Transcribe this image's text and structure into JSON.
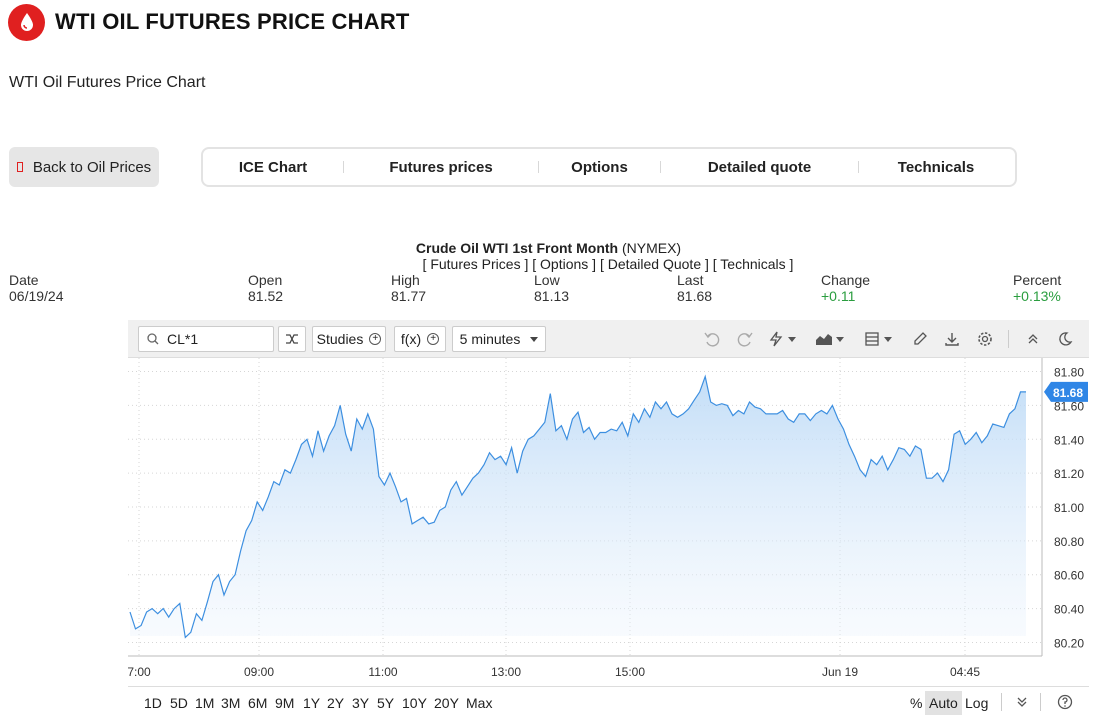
{
  "header": {
    "title": "WTI OIL FUTURES PRICE CHART",
    "logo_icon": "oil-drop-icon",
    "brand_color": "#e02020"
  },
  "subtitle": "WTI Oil Futures Price Chart",
  "back_button": {
    "label": "Back to Oil Prices"
  },
  "tabs": [
    {
      "label": "ICE Chart"
    },
    {
      "label": "Futures prices"
    },
    {
      "label": "Options"
    },
    {
      "label": "Detailed quote"
    },
    {
      "label": "Technicals"
    }
  ],
  "quote": {
    "name": "Crude Oil WTI 1st Front Month",
    "exchange": "(NYMEX)",
    "links": "[ Futures Prices ] [ Options ] [ Detailed Quote ] [ Technicals ]",
    "stats": [
      {
        "label": "Date",
        "value": "06/19/24",
        "positive": false
      },
      {
        "label": "Open",
        "value": "81.52",
        "positive": false
      },
      {
        "label": "High",
        "value": "81.77",
        "positive": false
      },
      {
        "label": "Low",
        "value": "81.13",
        "positive": false
      },
      {
        "label": "Last",
        "value": "81.68",
        "positive": false
      },
      {
        "label": "Change",
        "value": "+0.11",
        "positive": true
      },
      {
        "label": "Percent",
        "value": "+0.13%",
        "positive": true
      }
    ]
  },
  "toolbar": {
    "symbol": "CL*1",
    "studies_label": "Studies",
    "fx_label": "f(x)",
    "interval_label": "5 minutes",
    "icons": [
      "search-icon",
      "shuffle-icon",
      "undo-icon",
      "redo-icon",
      "lightning-icon",
      "area-chart-icon",
      "layout-icon",
      "pencil-icon",
      "download-icon",
      "gear-icon",
      "collapse-icon",
      "moon-icon"
    ]
  },
  "ranges": [
    "1D",
    "5D",
    "1M",
    "3M",
    "6M",
    "9M",
    "1Y",
    "2Y",
    "3Y",
    "5Y",
    "10Y",
    "20Y",
    "Max"
  ],
  "scale_options": {
    "percent": "%",
    "auto": "Auto",
    "log": "Log",
    "active": "Auto"
  },
  "chart_data": {
    "type": "area",
    "x_tick_labels": [
      "7:00",
      "09:00",
      "11:00",
      "13:00",
      "15:00",
      "Jun 19",
      "04:45"
    ],
    "y_tick_labels": [
      "81.80",
      "81.60",
      "81.40",
      "81.20",
      "81.00",
      "80.80",
      "80.60",
      "80.40",
      "80.20"
    ],
    "ylim": [
      80.12,
      81.88
    ],
    "last_value_label": "81.68",
    "line_color": "#3d8fe0",
    "grid": true,
    "values": [
      80.38,
      80.28,
      80.3,
      80.38,
      80.4,
      80.37,
      80.4,
      80.35,
      80.4,
      80.43,
      80.23,
      80.26,
      80.37,
      80.33,
      80.44,
      80.56,
      80.6,
      80.48,
      80.56,
      80.6,
      80.74,
      80.86,
      80.92,
      81.03,
      80.98,
      81.06,
      81.15,
      81.13,
      81.22,
      81.2,
      81.28,
      81.37,
      81.4,
      81.3,
      81.45,
      81.33,
      81.42,
      81.48,
      81.6,
      81.43,
      81.33,
      81.52,
      81.46,
      81.55,
      81.46,
      81.18,
      81.13,
      81.2,
      81.12,
      81.03,
      81.05,
      80.9,
      80.92,
      80.94,
      80.9,
      80.91,
      80.98,
      81.0,
      81.1,
      81.15,
      81.07,
      81.12,
      81.17,
      81.2,
      81.25,
      81.32,
      81.28,
      81.3,
      81.25,
      81.35,
      81.2,
      81.33,
      81.4,
      81.42,
      81.46,
      81.5,
      81.67,
      81.45,
      81.48,
      81.4,
      81.52,
      81.56,
      81.44,
      81.47,
      81.4,
      81.44,
      81.44,
      81.46,
      81.45,
      81.5,
      81.42,
      81.55,
      81.5,
      81.58,
      81.53,
      81.62,
      81.58,
      81.62,
      81.55,
      81.53,
      81.55,
      81.58,
      81.63,
      81.68,
      81.77,
      81.62,
      81.6,
      81.61,
      81.6,
      81.54,
      81.57,
      81.55,
      81.62,
      81.59,
      81.58,
      81.55,
      81.55,
      81.55,
      81.57,
      81.52,
      81.5,
      81.55,
      81.55,
      81.51,
      81.55,
      81.57,
      81.55,
      81.6,
      81.52,
      81.46,
      81.37,
      81.3,
      81.22,
      81.18,
      81.28,
      81.25,
      81.3,
      81.22,
      81.28,
      81.35,
      81.34,
      81.3,
      81.36,
      81.34,
      81.17,
      81.17,
      81.2,
      81.15,
      81.22,
      81.43,
      81.45,
      81.37,
      81.4,
      81.44,
      81.38,
      81.42,
      81.49,
      81.48,
      81.47,
      81.55,
      81.58,
      81.68,
      81.68
    ]
  }
}
